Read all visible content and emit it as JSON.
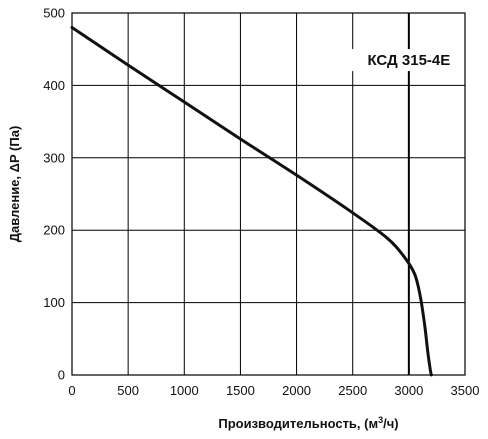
{
  "chart_data": {
    "type": "line",
    "title": "",
    "xlabel": "Производительность, (м",
    "xlabel_sup": "3",
    "xlabel_tail": "/ч)",
    "ylabel": "Давление, ΔP (Па)",
    "xlim": [
      0,
      3500
    ],
    "ylim": [
      0,
      500
    ],
    "x_ticks": [
      "0",
      "500",
      "1000",
      "1500",
      "2000",
      "2500",
      "3000",
      "3500"
    ],
    "y_ticks": [
      "0",
      "100",
      "200",
      "300",
      "400",
      "500"
    ],
    "grid": true,
    "series": [
      {
        "name": "КСД 315-4Е",
        "x": [
          0,
          500,
          1000,
          1500,
          2000,
          2500,
          2800,
          2950,
          3050,
          3100,
          3140,
          3170,
          3190,
          3200
        ],
        "y": [
          480,
          428,
          377,
          326,
          276,
          224,
          190,
          165,
          140,
          110,
          70,
          30,
          8,
          0
        ]
      }
    ],
    "reference_line": {
      "x": 3000,
      "label": "КСД 315-4Е"
    }
  }
}
